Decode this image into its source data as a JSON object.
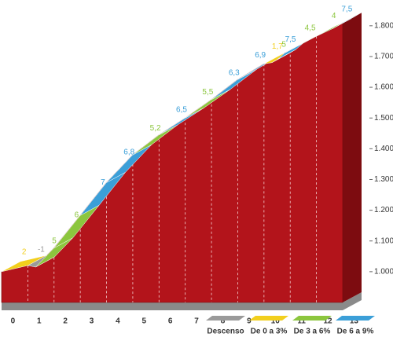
{
  "chart_data": {
    "type": "profile",
    "x": [
      0,
      1,
      1.3,
      2,
      3,
      4,
      5,
      6,
      7,
      8,
      9,
      10,
      10.3,
      10.5,
      10.8,
      12,
      12.6,
      13
    ],
    "values": [
      1000,
      1020,
      1015,
      1077,
      1183,
      1290,
      1380,
      1445,
      1500,
      1560,
      1625,
      1676,
      1680,
      1690,
      1712,
      1766,
      1790,
      1810
    ],
    "gradients": [
      2,
      -1,
      5,
      6,
      7,
      6.8,
      5.2,
      6.5,
      5.5,
      6.3,
      6.9,
      1.7,
      5,
      7.5,
      4.5,
      4,
      7.5
    ],
    "gradient_labels": [
      "2",
      "-1",
      "5",
      "6",
      "7",
      "6,8",
      "5,2",
      "6,5",
      "5,5",
      "6,3",
      "6,9",
      "1,7",
      "5",
      "7,5",
      "4,5",
      "4",
      "7,5"
    ],
    "segment_legend_index": [
      1,
      0,
      2,
      2,
      3,
      3,
      2,
      3,
      2,
      3,
      3,
      1,
      2,
      3,
      2,
      2,
      3
    ],
    "legend": [
      {
        "name": "Descenso",
        "color": "#9a9a9a"
      },
      {
        "name": "De 0 a 3%",
        "color": "#f2cf1d"
      },
      {
        "name": "De 3 a 6%",
        "color": "#8cc63e"
      },
      {
        "name": "De 6 a 9%",
        "color": "#3b9fd8"
      }
    ],
    "color": "#b3141b",
    "xlim": [
      0,
      13
    ],
    "xticks": [
      0,
      1,
      2,
      3,
      4,
      5,
      6,
      7,
      8,
      9,
      10,
      11,
      12,
      13
    ],
    "ylim": [
      900,
      1820
    ],
    "yticks": [
      {
        "value": 1000,
        "label": "1.000"
      },
      {
        "value": 1100,
        "label": "1.100"
      },
      {
        "value": 1200,
        "label": "1.200"
      },
      {
        "value": 1300,
        "label": "1.300"
      },
      {
        "value": 1400,
        "label": "1.400"
      },
      {
        "value": 1500,
        "label": "1.500"
      },
      {
        "value": 1600,
        "label": "1.600"
      },
      {
        "value": 1700,
        "label": "1.700"
      },
      {
        "value": 1800,
        "label": "1.800"
      }
    ],
    "grid": true
  }
}
